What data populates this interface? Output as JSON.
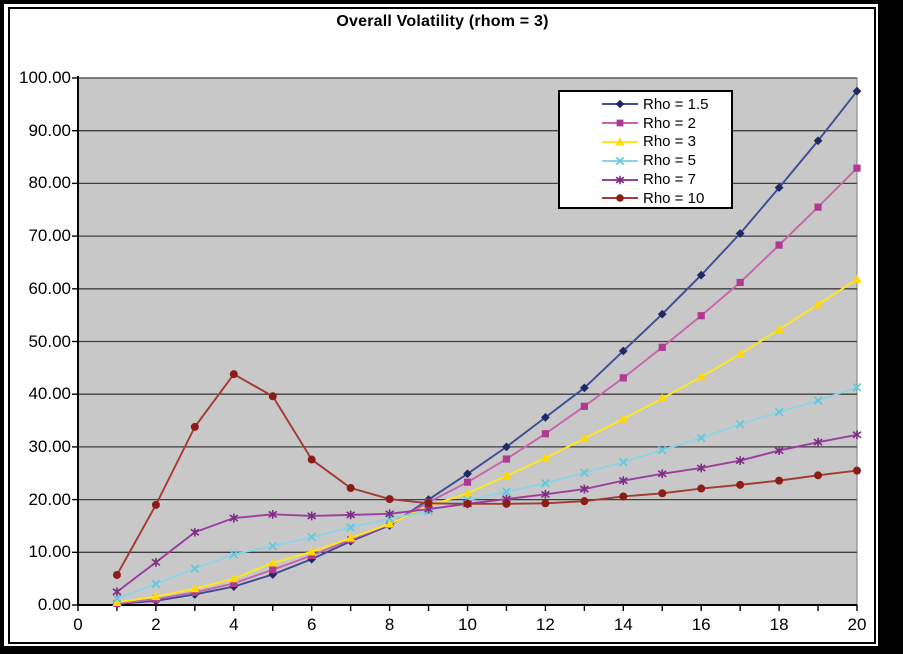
{
  "chart_data": {
    "type": "line",
    "title": "Overall Volatility (rhom = 3)",
    "xlabel": "",
    "ylabel": "",
    "xlim": [
      0,
      20
    ],
    "ylim": [
      0,
      100
    ],
    "grid": "horizontal",
    "legend_position": "inside-top-right",
    "plot_bg_color": "#C8C8C8",
    "grid_color": "#3F3F3F",
    "axis_color": "#000000",
    "plot_right_edge_color": "#8C8C8C",
    "x_minor_tick_step": 1,
    "x_tick_values": [
      0,
      2,
      4,
      6,
      8,
      10,
      12,
      14,
      16,
      18,
      20
    ],
    "x_tick_labels": [
      "0",
      "2",
      "4",
      "6",
      "8",
      "10",
      "12",
      "14",
      "16",
      "18",
      "20"
    ],
    "y_tick_values": [
      0,
      10,
      20,
      30,
      40,
      50,
      60,
      70,
      80,
      90,
      100
    ],
    "y_tick_labels": [
      "0.00",
      "10.00",
      "20.00",
      "30.00",
      "40.00",
      "50.00",
      "60.00",
      "70.00",
      "80.00",
      "90.00",
      "100.00"
    ],
    "x": [
      1,
      2,
      3,
      4,
      5,
      6,
      7,
      8,
      9,
      10,
      11,
      12,
      13,
      14,
      15,
      16,
      17,
      18,
      19,
      20
    ],
    "series": [
      {
        "name": "Rho = 1.5",
        "marker": "diamond",
        "line_color": "#3D4D96",
        "marker_color": "#1F2A63",
        "values": [
          0.2,
          0.8,
          2.0,
          3.5,
          5.8,
          8.7,
          12.1,
          15.1,
          20.0,
          24.9,
          30.0,
          35.6,
          41.2,
          48.2,
          55.2,
          62.6,
          70.5,
          79.2,
          88.1,
          97.5
        ]
      },
      {
        "name": "Rho = 2",
        "marker": "square",
        "line_color": "#C864AE",
        "marker_color": "#AE3A94",
        "values": [
          0.3,
          1.1,
          2.4,
          4.1,
          6.7,
          9.4,
          12.4,
          15.3,
          19.5,
          23.3,
          27.7,
          32.5,
          37.7,
          43.1,
          48.9,
          54.9,
          61.2,
          68.3,
          75.5,
          82.9
        ]
      },
      {
        "name": "Rho = 3",
        "marker": "triangle",
        "line_color": "#FFE81A",
        "marker_color": "#FFD900",
        "values": [
          0.5,
          1.6,
          3.1,
          5.0,
          8.0,
          10.1,
          12.7,
          15.4,
          18.8,
          21.2,
          24.5,
          27.9,
          31.6,
          35.3,
          39.2,
          43.3,
          47.6,
          52.3,
          57.0,
          61.8
        ]
      },
      {
        "name": "Rho = 5",
        "marker": "x",
        "line_color": "#8AD4E5",
        "marker_color": "#62C7DC",
        "values": [
          1.2,
          4.0,
          6.9,
          9.6,
          11.2,
          12.9,
          14.7,
          16.4,
          17.8,
          19.9,
          21.5,
          23.1,
          25.1,
          27.1,
          29.4,
          31.7,
          34.3,
          36.6,
          38.8,
          41.3
        ]
      },
      {
        "name": "Rho = 7",
        "marker": "asterisk",
        "line_color": "#9A3E9F",
        "marker_color": "#7C2D84",
        "values": [
          2.5,
          8.1,
          13.8,
          16.5,
          17.2,
          16.9,
          17.1,
          17.3,
          18.2,
          19.2,
          20.1,
          21.0,
          22.0,
          23.6,
          24.9,
          26.0,
          27.4,
          29.3,
          30.9,
          32.3
        ]
      },
      {
        "name": "Rho = 10",
        "marker": "circle",
        "line_color": "#A23B31",
        "marker_color": "#8C1D16",
        "values": [
          5.7,
          19.0,
          33.8,
          43.8,
          39.6,
          27.6,
          22.2,
          20.1,
          19.3,
          19.2,
          19.2,
          19.3,
          19.7,
          20.6,
          21.2,
          22.1,
          22.8,
          23.6,
          24.6,
          25.5
        ]
      }
    ]
  }
}
